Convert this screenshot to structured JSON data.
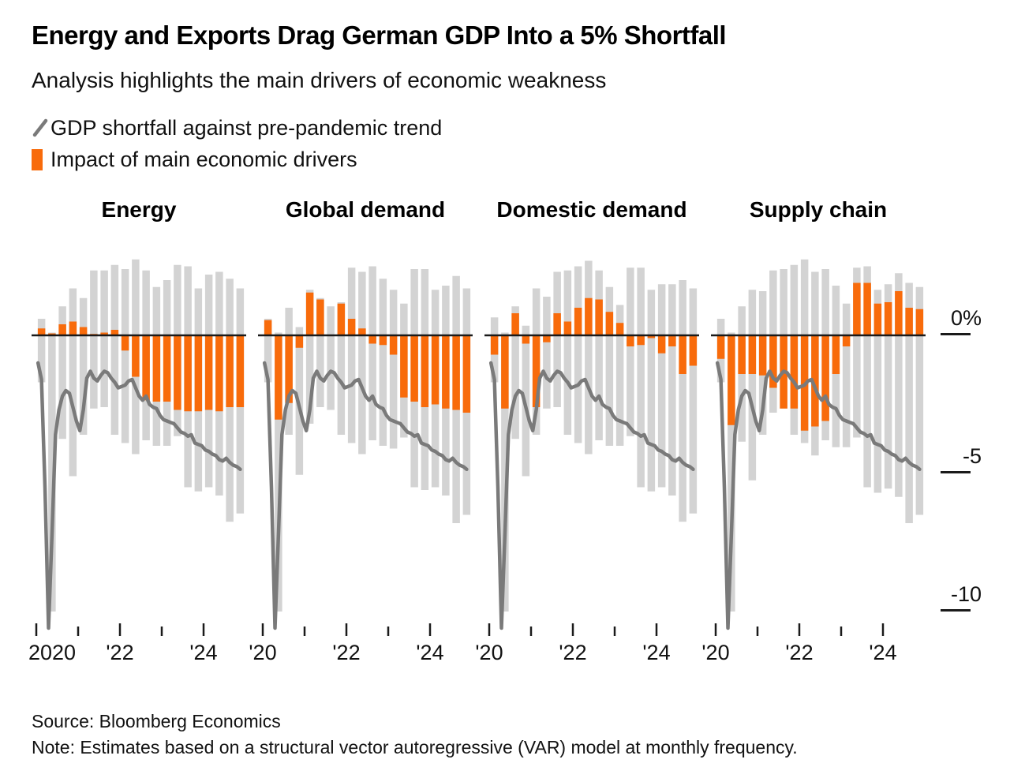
{
  "header": {
    "title": "Energy and Exports Drag German GDP Into a 5% Shortfall",
    "subtitle": "Analysis highlights the main drivers of economic weakness"
  },
  "legend": {
    "line_label": "GDP shortfall against pre-pandemic trend",
    "bar_label": "Impact of main economic drivers"
  },
  "colors": {
    "impact_bar": "#f86b0b",
    "range_bar": "#d3d3d3",
    "gdp_line": "#7a7a7a",
    "zero_line": "#1a1a1a",
    "tick": "#1a1a1a",
    "text": "#111111"
  },
  "y_axis": {
    "unit": "%",
    "labels": [
      {
        "text": "0%",
        "value": 0
      },
      {
        "text": "-5",
        "value": -5
      },
      {
        "text": "-10",
        "value": -10
      }
    ]
  },
  "footer": {
    "source": "Source: Bloomberg Economics",
    "note": "Note: Estimates based on a structural vector autoregressive (VAR) model at monthly frequency."
  },
  "chart_data": {
    "type": "bar",
    "subtype": "small-multiples: quarterly range bars (grey) + driver impact bars (orange) + monthly GDP shortfall line",
    "categories": [
      "2020Q1",
      "2020Q2",
      "2020Q3",
      "2020Q4",
      "2021Q1",
      "2021Q2",
      "2021Q3",
      "2021Q4",
      "2022Q1",
      "2022Q2",
      "2022Q3",
      "2022Q4",
      "2023Q1",
      "2023Q2",
      "2023Q3",
      "2023Q4",
      "2024Q1",
      "2024Q2",
      "2024Q3",
      "2024Q4"
    ],
    "ylim": [
      -10.8,
      2.9
    ],
    "panels": [
      {
        "name": "Energy",
        "impact": [
          0.25,
          0.07,
          0.4,
          0.5,
          0.3,
          0.05,
          0.1,
          0.2,
          -0.55,
          -1.5,
          -2.35,
          -2.4,
          -2.4,
          -2.7,
          -2.75,
          -2.75,
          -2.7,
          -2.75,
          -2.6,
          -2.6
        ],
        "range_high": [
          0.6,
          0.1,
          1.05,
          1.7,
          1.35,
          2.35,
          2.35,
          2.55,
          2.4,
          2.75,
          2.35,
          1.75,
          2.0,
          2.55,
          2.5,
          1.7,
          2.2,
          2.3,
          2.05,
          1.7
        ],
        "range_low": [
          -1.7,
          -10.0,
          -3.75,
          -5.1,
          -3.6,
          -2.65,
          -2.6,
          -3.6,
          -3.9,
          -4.3,
          -3.8,
          -4.0,
          -4.0,
          -3.65,
          -5.5,
          -5.65,
          -5.5,
          -5.8,
          -6.75,
          -6.45
        ],
        "xticks": [
          {
            "label": "2020",
            "year": 0,
            "align": "start"
          },
          {
            "label": "'22",
            "year": 2,
            "align": "middle"
          },
          {
            "label": "'24",
            "year": 4,
            "align": "middle"
          }
        ]
      },
      {
        "name": "Global demand",
        "impact": [
          0.55,
          -3.05,
          -2.45,
          -0.45,
          1.55,
          1.3,
          0,
          1.15,
          0.6,
          0.25,
          -0.3,
          -0.35,
          -0.7,
          -2.25,
          -2.4,
          -2.6,
          -2.5,
          -2.65,
          -2.7,
          -2.8
        ],
        "range_high": [
          0.6,
          0.1,
          1.0,
          0.3,
          1.65,
          1.35,
          1.05,
          1.2,
          2.45,
          2.3,
          2.5,
          2.05,
          1.65,
          1.15,
          2.4,
          2.4,
          1.65,
          1.8,
          2.15,
          1.7
        ],
        "range_low": [
          -1.7,
          -10.0,
          -3.6,
          -5.05,
          -3.2,
          -2.6,
          -2.7,
          -3.6,
          -3.9,
          -4.3,
          -3.8,
          -4.0,
          -4.1,
          -3.7,
          -5.5,
          -5.6,
          -5.5,
          -5.8,
          -6.8,
          -6.5
        ],
        "xticks": [
          {
            "label": "'20",
            "year": 0,
            "align": "middle"
          },
          {
            "label": "'22",
            "year": 2,
            "align": "middle"
          },
          {
            "label": "'24",
            "year": 4,
            "align": "middle"
          }
        ]
      },
      {
        "name": "Domestic demand",
        "impact": [
          -0.7,
          -2.65,
          0.8,
          -0.3,
          -2.6,
          -0.25,
          0.8,
          0.5,
          1.0,
          1.35,
          1.3,
          0.85,
          0.45,
          -0.4,
          -0.35,
          -0.1,
          -0.65,
          -0.4,
          -1.4,
          -1.1
        ],
        "range_high": [
          0.65,
          0.1,
          1.05,
          0.35,
          1.7,
          1.4,
          2.3,
          2.35,
          2.5,
          2.7,
          2.35,
          1.75,
          1.1,
          2.45,
          2.45,
          1.65,
          1.85,
          1.85,
          2.0,
          1.7
        ],
        "range_low": [
          -1.7,
          -10.0,
          -3.75,
          -5.1,
          -3.6,
          -2.65,
          -2.6,
          -3.6,
          -3.9,
          -4.3,
          -3.8,
          -4.0,
          -4.0,
          -3.65,
          -5.5,
          -5.65,
          -5.5,
          -5.8,
          -6.75,
          -6.45
        ],
        "xticks": [
          {
            "label": "'20",
            "year": 0,
            "align": "middle"
          },
          {
            "label": "'22",
            "year": 2,
            "align": "middle"
          },
          {
            "label": "'24",
            "year": 4,
            "align": "middle"
          }
        ]
      },
      {
        "name": "Supply chain",
        "impact": [
          -0.85,
          -3.25,
          -1.4,
          -1.4,
          -1.45,
          -1.9,
          -2.65,
          -2.65,
          -3.45,
          -3.3,
          -3.1,
          -1.4,
          -0.4,
          1.9,
          1.9,
          1.15,
          1.2,
          1.6,
          1.0,
          0.95
        ],
        "range_high": [
          0.6,
          0.1,
          1.05,
          1.65,
          1.6,
          2.35,
          2.4,
          2.55,
          2.75,
          2.3,
          2.4,
          1.8,
          1.15,
          2.45,
          2.5,
          1.65,
          1.85,
          2.25,
          1.9,
          1.75
        ],
        "range_low": [
          -1.7,
          -10.0,
          -3.85,
          -5.25,
          -3.6,
          -2.8,
          -2.65,
          -3.6,
          -3.9,
          -4.35,
          -3.8,
          -4.05,
          -4.05,
          -3.7,
          -5.5,
          -5.7,
          -5.55,
          -5.85,
          -6.8,
          -6.5
        ],
        "xticks": [
          {
            "label": "'20",
            "year": 0,
            "align": "middle"
          },
          {
            "label": "'22",
            "year": 2,
            "align": "middle"
          },
          {
            "label": "'24",
            "year": 4,
            "align": "middle"
          }
        ]
      }
    ],
    "gdp_line": {
      "name": "GDP shortfall against pre-pandemic trend",
      "start": "2020-01",
      "frequency": "monthly",
      "values": [
        -1.0,
        -1.6,
        -5.5,
        -10.6,
        -7.2,
        -3.6,
        -2.7,
        -2.2,
        -2.0,
        -2.1,
        -2.6,
        -3.1,
        -3.45,
        -2.7,
        -1.55,
        -1.3,
        -1.55,
        -1.65,
        -1.45,
        -1.3,
        -1.35,
        -1.55,
        -1.7,
        -1.9,
        -1.85,
        -1.8,
        -1.65,
        -1.6,
        -1.9,
        -2.2,
        -2.35,
        -2.2,
        -2.5,
        -2.6,
        -2.65,
        -2.9,
        -3.05,
        -3.1,
        -3.15,
        -3.2,
        -3.35,
        -3.5,
        -3.55,
        -3.65,
        -3.6,
        -3.9,
        -3.95,
        -4.0,
        -4.15,
        -4.2,
        -4.3,
        -4.35,
        -4.5,
        -4.55,
        -4.45,
        -4.6,
        -4.7,
        -4.75,
        -4.85
      ]
    }
  }
}
